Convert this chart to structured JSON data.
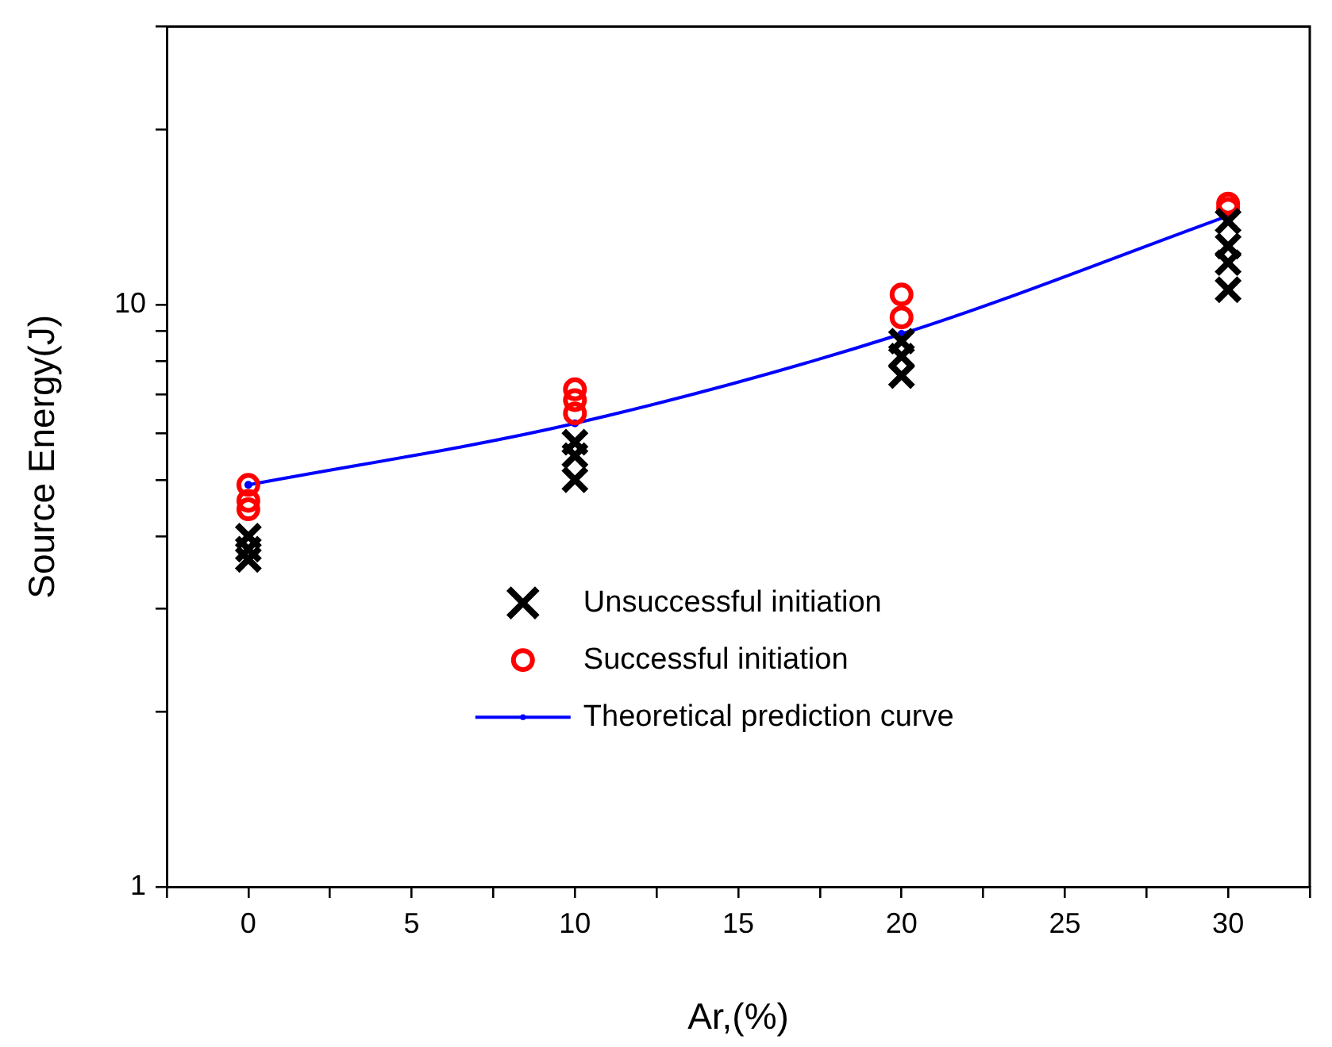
{
  "chart_data": {
    "type": "scatter",
    "xlabel": "Ar,(%)",
    "ylabel": "Source Energy(J)",
    "log": "y",
    "xlim": [
      -2.5,
      32.5
    ],
    "xticks": [
      {
        "value": -2.5,
        "label": null
      },
      0,
      {
        "value": 2.5,
        "label": null
      },
      5,
      {
        "value": 7.5,
        "label": null
      },
      10,
      {
        "value": 12.5,
        "label": null
      },
      15,
      {
        "value": 17.5,
        "label": null
      },
      20,
      {
        "value": 22.5,
        "label": null
      },
      25,
      {
        "value": 27.5,
        "label": null
      },
      30,
      {
        "value": 32.5,
        "label": null
      }
    ],
    "ylim": [
      1,
      30
    ],
    "yticks": [
      1,
      {
        "value": 2,
        "label": null
      },
      {
        "value": 3,
        "label": null
      },
      {
        "value": 4,
        "label": null
      },
      {
        "value": 5,
        "label": null
      },
      {
        "value": 6,
        "label": null
      },
      {
        "value": 7,
        "label": null
      },
      {
        "value": 8,
        "label": null
      },
      {
        "value": 9,
        "label": null
      },
      10,
      {
        "value": 20,
        "label": null
      },
      {
        "value": 30,
        "label": null
      }
    ],
    "grid": false,
    "legend": "center",
    "series": [
      {
        "name": "Unsuccessful initiation",
        "marker": "cross",
        "color": "#000000",
        "x": [
          0,
          0,
          0,
          10,
          10,
          10,
          20,
          20,
          20,
          30,
          30,
          30,
          30
        ],
        "values": [
          4.0,
          3.8,
          3.65,
          5.8,
          5.5,
          5.0,
          8.65,
          8.15,
          7.55,
          13.9,
          12.6,
          11.8,
          10.6
        ]
      },
      {
        "name": "Successful initiation",
        "marker": "circle",
        "color": "#ff0000",
        "x": [
          0,
          0,
          0,
          10,
          10,
          10,
          20,
          20,
          30,
          30
        ],
        "values": [
          4.9,
          4.6,
          4.45,
          7.15,
          6.85,
          6.5,
          10.4,
          9.5,
          14.9,
          14.6
        ]
      },
      {
        "name": "Theoretical prediction curve",
        "type": "line",
        "marker": "circle",
        "color": "#0000ff",
        "x": [
          0,
          10,
          20,
          30
        ],
        "values": [
          4.9,
          6.25,
          8.9,
          14.2
        ]
      }
    ]
  }
}
